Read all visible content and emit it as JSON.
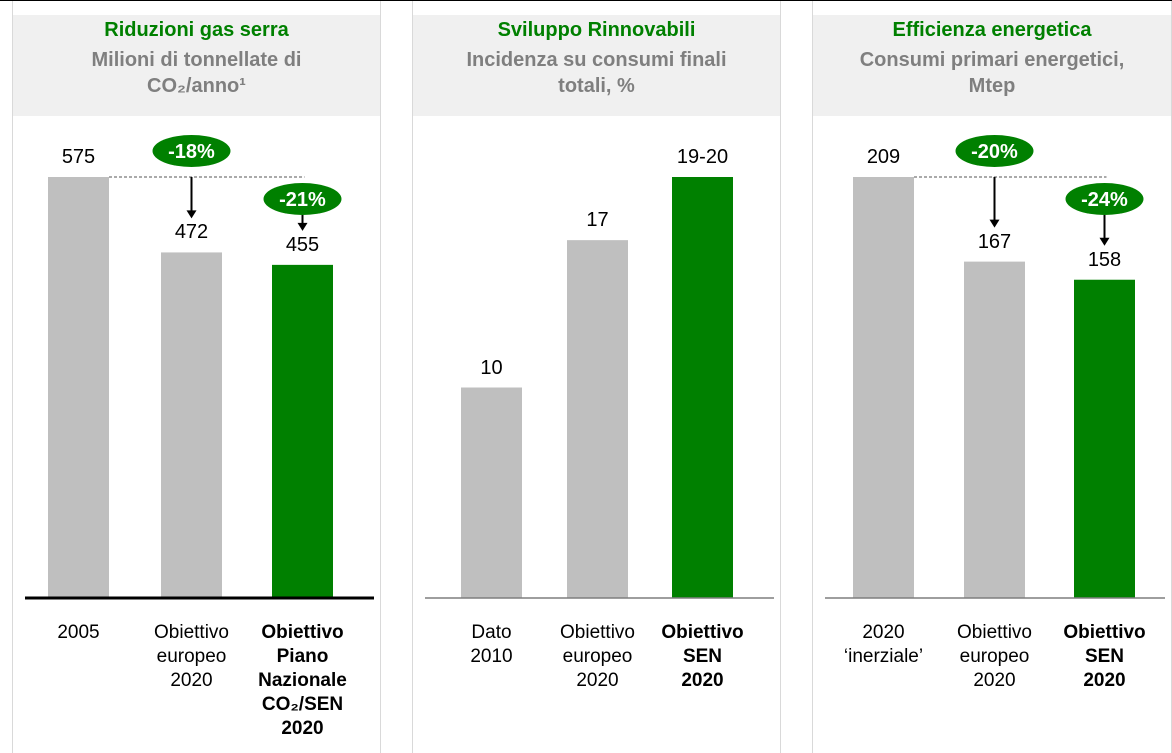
{
  "chart_data": [
    {
      "type": "bar",
      "title": "Riduzioni gas serra",
      "subtitle": "Milioni di tonnellate di CO₂/anno¹",
      "categories": [
        "2005",
        "Obiettivo\neuropeo\n2020",
        "Obiettivo\nPiano\nNazionale\nCO₂/SEN\n2020"
      ],
      "values": [
        575,
        472,
        455
      ],
      "colors": [
        "#bfbfbf",
        "#bfbfbf",
        "#008000"
      ],
      "annotations": [
        "-18%",
        "-21%"
      ]
    },
    {
      "type": "bar",
      "title": "Sviluppo Rinnovabili",
      "subtitle": "Incidenza su consumi finali totali, %",
      "categories": [
        "Dato\n2010",
        "Obiettivo\neuropeo\n2020",
        "Obiettivo\nSEN\n2020"
      ],
      "values": [
        10,
        17,
        20
      ],
      "value_labels": [
        "10",
        "17",
        "19-20"
      ],
      "colors": [
        "#bfbfbf",
        "#bfbfbf",
        "#008000"
      ]
    },
    {
      "type": "bar",
      "title": "Efficienza energetica",
      "subtitle": "Consumi primari energetici, Mtep",
      "categories": [
        "2020\n‘inerziale’",
        "Obiettivo\neuropeo\n2020",
        "Obiettivo\nSEN\n2020"
      ],
      "values": [
        209,
        167,
        158
      ],
      "colors": [
        "#bfbfbf",
        "#bfbfbf",
        "#008000"
      ],
      "annotations": [
        "-20%",
        "-24%"
      ]
    }
  ]
}
